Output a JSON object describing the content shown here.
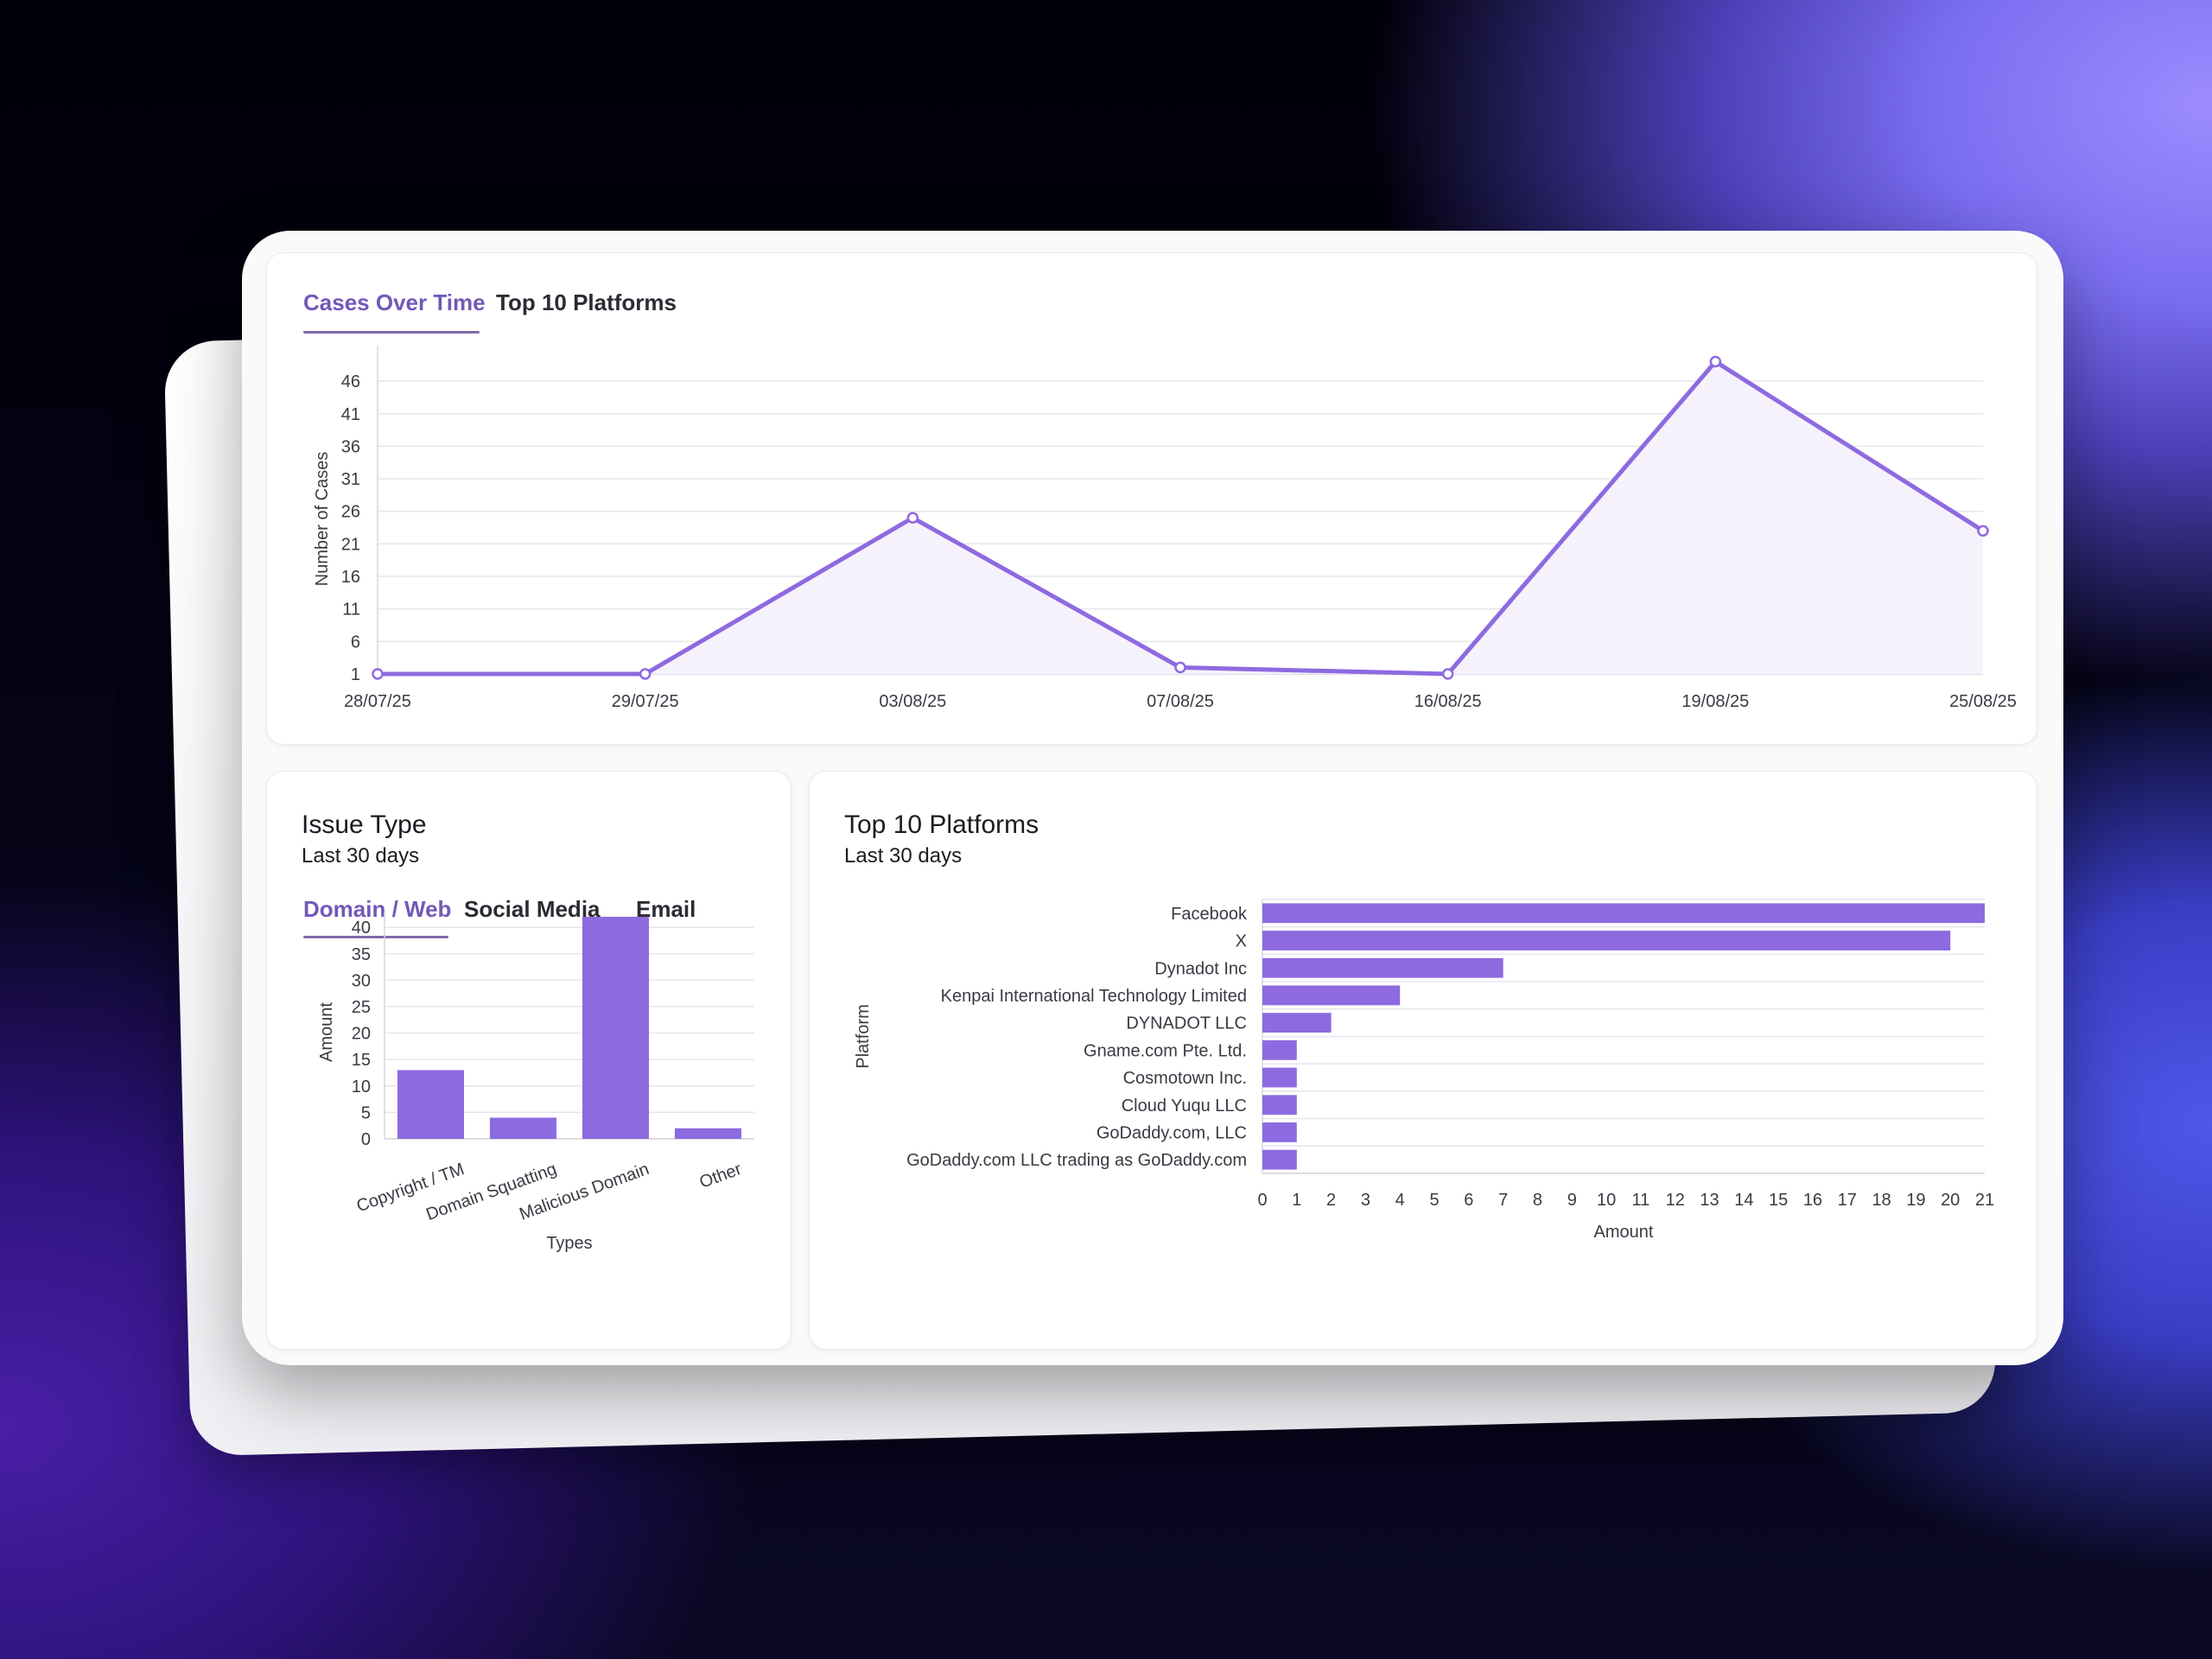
{
  "cases_panel": {
    "tabs": [
      {
        "label": "Cases Over Time",
        "active": true
      },
      {
        "label": "Top 10 Platforms",
        "active": false
      }
    ]
  },
  "issue_panel": {
    "title": "Issue Type",
    "subtitle": "Last 30 days",
    "tabs": [
      {
        "label": "Domain / Web",
        "active": true
      },
      {
        "label": "Social Media",
        "active": false
      },
      {
        "label": "Email",
        "active": false
      }
    ]
  },
  "platform_panel": {
    "title": "Top 10 Platforms",
    "subtitle": "Last 30 days"
  },
  "colors": {
    "accent": "#8e6ae0",
    "tab_active": "#7159b8",
    "line_fill": "#f6f2fc"
  },
  "chart_data": [
    {
      "id": "cases-over-time",
      "type": "line",
      "title": "",
      "xlabel": "",
      "ylabel": "Number of Cases",
      "x": [
        "28/07/25",
        "29/07/25",
        "03/08/25",
        "07/08/25",
        "16/08/25",
        "19/08/25",
        "25/08/25"
      ],
      "series": [
        {
          "values": [
            1,
            1,
            25,
            2,
            1,
            49,
            23
          ]
        }
      ],
      "yticks": [
        1,
        6,
        11,
        16,
        21,
        26,
        31,
        36,
        41,
        46
      ],
      "ylim": [
        1,
        50
      ],
      "grid": true
    },
    {
      "id": "issue-type",
      "type": "bar",
      "title": "",
      "xlabel": "Types",
      "ylabel": "Amount",
      "categories": [
        "Copyright / TM",
        "Domain Squatting",
        "Malicious Domain",
        "Other"
      ],
      "values": [
        13,
        4,
        42,
        2
      ],
      "yticks": [
        0,
        5,
        10,
        15,
        20,
        25,
        30,
        35,
        40
      ],
      "ylim": [
        0,
        42
      ],
      "grid": true
    },
    {
      "id": "top-platforms",
      "type": "bar",
      "orientation": "horizontal",
      "title": "",
      "xlabel": "Amount",
      "ylabel": "Platform",
      "categories": [
        "Facebook",
        "X",
        "Dynadot Inc",
        "Kenpai International Technology Limited",
        "DYNADOT LLC",
        "Gname.com Pte. Ltd.",
        "Cosmotown Inc.",
        "Cloud Yuqu LLC",
        "GoDaddy.com, LLC",
        "GoDaddy.com LLC trading as GoDaddy.com"
      ],
      "values": [
        21,
        20,
        7,
        4,
        2,
        1,
        1,
        1,
        1,
        1
      ],
      "xticks": [
        0,
        1,
        2,
        3,
        4,
        5,
        6,
        7,
        8,
        9,
        10,
        11,
        12,
        13,
        14,
        15,
        16,
        17,
        18,
        19,
        20,
        21
      ],
      "xlim": [
        0,
        21
      ],
      "grid": true
    }
  ]
}
